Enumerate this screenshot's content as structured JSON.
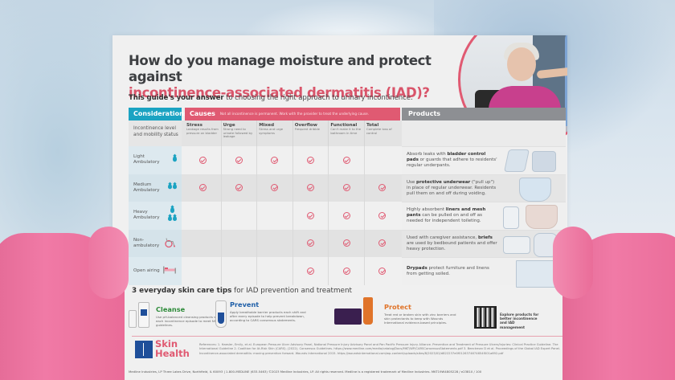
{
  "document": {
    "title_line1": "How do you manage moisture and protect against",
    "title_line2": "incontinence-associated dermatitis (IAD)?",
    "subtitle_bold": "This guide's your answer",
    "subtitle_rest": " to choosing the right approach to urinary incontinence."
  },
  "table": {
    "headers": {
      "considerations": "Considerations",
      "causes": "Causes",
      "causes_note": "Not all incontinence is permanent. Work with the provider to treat the underlying cause.",
      "products": "Products"
    },
    "considerations_subheader": "Incontinence level and mobility status",
    "causes": [
      {
        "name": "Stress",
        "desc": "Leakage results from pressure on bladder"
      },
      {
        "name": "Urge",
        "desc": "Strong need to urinate followed by leakage"
      },
      {
        "name": "Mixed",
        "desc": "Stress and urge symptoms"
      },
      {
        "name": "Overflow",
        "desc": "Frequent dribble"
      },
      {
        "name": "Functional",
        "desc": "Can't make it to the bathroom in time"
      },
      {
        "name": "Total",
        "desc": "Complete loss of control"
      }
    ],
    "rows": [
      {
        "label": "Light Ambulatory",
        "icon": "one-drop-icon",
        "checks": [
          true,
          true,
          true,
          true,
          true,
          false
        ],
        "product_pre": "Absorb leaks with ",
        "product_bold": "bladder control pads",
        "product_post": " or guards that adhere to residents' regular underpants."
      },
      {
        "label": "Medium Ambulatory",
        "icon": "two-drops-icon",
        "checks": [
          true,
          true,
          true,
          true,
          true,
          true
        ],
        "product_pre": "Use ",
        "product_bold": "protective underwear",
        "product_post": " (\"pull up\") in place of regular underwear. Residents pull them on and off during voiding."
      },
      {
        "label": "Heavy Ambulatory",
        "icon": "three-drops-icon",
        "checks": [
          false,
          false,
          false,
          true,
          true,
          true
        ],
        "product_pre": "Highly absorbent ",
        "product_bold": "liners and mesh pants",
        "product_post": " can be pulled on and off as needed for independent toileting."
      },
      {
        "label": "Non-ambulatory",
        "icon": "wheelchair-icon",
        "checks": [
          false,
          false,
          false,
          true,
          true,
          true
        ],
        "product_pre": "Used with caregiver assistance, ",
        "product_bold": "briefs",
        "product_post": " are used by bedbound patients and offer heavy protection."
      },
      {
        "label": "Open airing",
        "icon": "bed-icon",
        "checks": [
          false,
          false,
          false,
          true,
          true,
          true
        ],
        "product_pre": "",
        "product_bold": "Drypads",
        "product_post": " protect furniture and linens from getting soiled."
      }
    ]
  },
  "tips": {
    "title_bold": "3 everyday skin care tips",
    "title_rest": " for IAD prevention and treatment",
    "items": [
      {
        "name": "Cleanse",
        "color": "#2e8b3a",
        "desc": "Use pH-balanced cleansing products with each incontinence episode to meet NPIAP guidelines."
      },
      {
        "name": "Prevent",
        "color": "#1f5fa8",
        "desc": "Apply breathable barrier products each shift and after every episode to help prevent breakdown, according to CARS consensus statements."
      },
      {
        "name": "Protect",
        "color": "#e0742a",
        "desc": "Treat red or broken skin with zinc barriers and skin protectants to keep with Wounds International evidence-based principles."
      }
    ],
    "qr_text": "Explore products for better incontinence and IAD management"
  },
  "footer": {
    "brand_line1": "Skin",
    "brand_line2": "Health",
    "references": "References: 1. Haesler, Emily, et al. European Pressure Ulcer Advisory Panel, National Pressure Injury Advisory Panel and Pan Pacific Pressure Injury Alliance. Prevention and Treatment of Pressure Ulcers/Injuries: Clinical Practice Guideline. The International Guideline 2. Coalition for At-Risk Skin (CARS). (2022). Consensus Guidelines. https://www.medline.com/media/catalog/Docs/MKT/WP/CARSConsensusStatements.pdf 3. Beeckman D et al. Proceedings of the Global IAD Expert Panel. Incontinence-associated dermatitis: moving prevention forward. Wounds International 2015. https://woundsinternational.com/wp-content/uploads/sites/8/2023/02/d822237e0f0126374674654f001a692.pdf",
    "address": "Medline Industries, LP  Three Lakes Drive, Northfield, IL 60093 | 1-800-MEDLINE (633-5463)  ©2023 Medline Industries, LP. All rights reserved. Medline is a registered trademark of Medline Industries. MKT19W4805228 / e23810 / 100"
  },
  "colors": {
    "teal": "#1ba3c2",
    "pink": "#e05a72",
    "gray_header": "#8d8f93",
    "title_dark": "#3d3f42",
    "glove_pink": "#ee78a4"
  }
}
